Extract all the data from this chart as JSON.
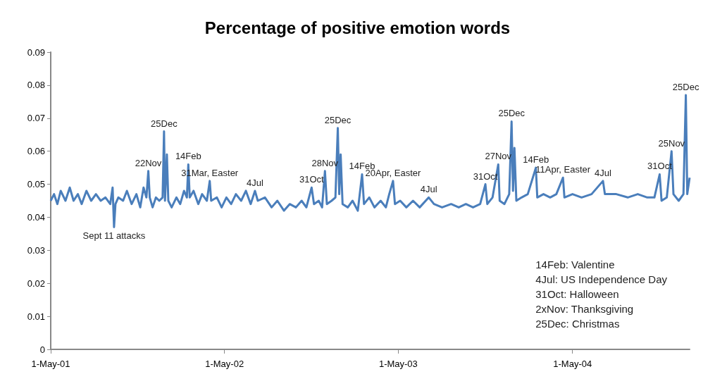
{
  "chart_data": {
    "type": "line",
    "title": "Percentage of positive emotion words",
    "x": [
      "2001-05-01",
      "2001-05-08",
      "2001-05-15",
      "2001-05-22",
      "2001-06-01",
      "2001-06-10",
      "2001-06-18",
      "2001-06-27",
      "2001-07-05",
      "2001-07-15",
      "2001-07-25",
      "2001-08-04",
      "2001-08-14",
      "2001-08-24",
      "2001-09-03",
      "2001-09-08",
      "2001-09-11",
      "2001-09-14",
      "2001-09-20",
      "2001-09-30",
      "2001-10-08",
      "2001-10-18",
      "2001-10-28",
      "2001-11-05",
      "2001-11-12",
      "2001-11-18",
      "2001-11-22",
      "2001-11-25",
      "2001-12-01",
      "2001-12-08",
      "2001-12-15",
      "2001-12-22",
      "2001-12-25",
      "2001-12-27",
      "2001-12-31",
      "2002-01-03",
      "2002-01-10",
      "2002-01-20",
      "2002-01-28",
      "2002-02-05",
      "2002-02-11",
      "2002-02-14",
      "2002-02-17",
      "2002-02-25",
      "2002-03-07",
      "2002-03-15",
      "2002-03-25",
      "2002-03-31",
      "2002-04-03",
      "2002-04-15",
      "2002-04-25",
      "2002-05-05",
      "2002-05-15",
      "2002-05-25",
      "2002-06-05",
      "2002-06-15",
      "2002-06-25",
      "2002-07-04",
      "2002-07-10",
      "2002-07-25",
      "2002-08-08",
      "2002-08-20",
      "2002-09-03",
      "2002-09-15",
      "2002-09-28",
      "2002-10-10",
      "2002-10-20",
      "2002-10-31",
      "2002-11-05",
      "2002-11-15",
      "2002-11-22",
      "2002-11-28",
      "2002-12-02",
      "2002-12-12",
      "2002-12-20",
      "2002-12-25",
      "2002-12-28",
      "2002-12-31",
      "2003-01-04",
      "2003-01-15",
      "2003-01-25",
      "2003-02-05",
      "2003-02-14",
      "2003-02-18",
      "2003-03-01",
      "2003-03-12",
      "2003-03-25",
      "2003-04-05",
      "2003-04-12",
      "2003-04-20",
      "2003-04-24",
      "2003-05-05",
      "2003-05-18",
      "2003-06-01",
      "2003-06-15",
      "2003-07-04",
      "2003-07-15",
      "2003-08-01",
      "2003-08-20",
      "2003-09-05",
      "2003-09-20",
      "2003-10-05",
      "2003-10-20",
      "2003-10-31",
      "2003-11-04",
      "2003-11-15",
      "2003-11-27",
      "2003-11-30",
      "2003-12-10",
      "2003-12-20",
      "2003-12-25",
      "2003-12-28",
      "2003-12-31",
      "2004-01-04",
      "2004-01-15",
      "2004-01-28",
      "2004-02-14",
      "2004-02-17",
      "2004-03-01",
      "2004-03-15",
      "2004-03-28",
      "2004-04-11",
      "2004-04-14",
      "2004-05-01",
      "2004-05-20",
      "2004-06-10",
      "2004-07-04",
      "2004-07-08",
      "2004-08-01",
      "2004-08-25",
      "2004-09-15",
      "2004-10-05",
      "2004-10-20",
      "2004-10-31",
      "2004-11-04",
      "2004-11-15",
      "2004-11-25",
      "2004-11-29",
      "2004-12-10",
      "2004-12-20",
      "2004-12-25",
      "2004-12-28",
      "2005-01-02"
    ],
    "series": [
      {
        "color": "#4a7ebb",
        "values": [
          0.045,
          0.047,
          0.044,
          0.048,
          0.045,
          0.049,
          0.045,
          0.047,
          0.044,
          0.048,
          0.045,
          0.047,
          0.045,
          0.046,
          0.044,
          0.049,
          0.037,
          0.044,
          0.046,
          0.045,
          0.048,
          0.044,
          0.047,
          0.043,
          0.049,
          0.046,
          0.054,
          0.046,
          0.043,
          0.046,
          0.045,
          0.046,
          0.066,
          0.045,
          0.059,
          0.045,
          0.043,
          0.046,
          0.044,
          0.048,
          0.046,
          0.056,
          0.046,
          0.048,
          0.044,
          0.047,
          0.045,
          0.051,
          0.045,
          0.046,
          0.043,
          0.046,
          0.044,
          0.047,
          0.045,
          0.048,
          0.044,
          0.048,
          0.045,
          0.046,
          0.043,
          0.045,
          0.042,
          0.044,
          0.043,
          0.045,
          0.043,
          0.049,
          0.044,
          0.045,
          0.043,
          0.054,
          0.044,
          0.045,
          0.046,
          0.067,
          0.047,
          0.059,
          0.044,
          0.043,
          0.045,
          0.042,
          0.053,
          0.044,
          0.046,
          0.043,
          0.045,
          0.043,
          0.047,
          0.051,
          0.044,
          0.045,
          0.043,
          0.045,
          0.043,
          0.046,
          0.044,
          0.043,
          0.044,
          0.043,
          0.044,
          0.043,
          0.044,
          0.05,
          0.044,
          0.046,
          0.056,
          0.045,
          0.044,
          0.047,
          0.069,
          0.048,
          0.061,
          0.045,
          0.046,
          0.047,
          0.055,
          0.046,
          0.047,
          0.046,
          0.047,
          0.052,
          0.046,
          0.047,
          0.046,
          0.047,
          0.051,
          0.047,
          0.047,
          0.046,
          0.047,
          0.046,
          0.046,
          0.053,
          0.045,
          0.046,
          0.06,
          0.047,
          0.045,
          0.047,
          0.077,
          0.047,
          0.052
        ]
      }
    ],
    "xlim": [
      "2001-05-01",
      "2005-01-02"
    ],
    "xticks": [
      {
        "value": "2001-05-01",
        "label": "1-May-01"
      },
      {
        "value": "2002-05-01",
        "label": "1-May-02"
      },
      {
        "value": "2003-05-01",
        "label": "1-May-03"
      },
      {
        "value": "2004-05-01",
        "label": "1-May-04"
      }
    ],
    "ylim": [
      0,
      0.09
    ],
    "yticks": [
      0,
      0.01,
      0.02,
      0.03,
      0.04,
      0.05,
      0.06,
      0.07,
      0.08,
      0.09
    ],
    "annotations": [
      {
        "text": "Sept 11 attacks",
        "x": "2001-09-11",
        "y": 0.037
      },
      {
        "text": "22Nov",
        "x": "2001-11-22",
        "y": 0.054
      },
      {
        "text": "25Dec",
        "x": "2001-12-25",
        "y": 0.066
      },
      {
        "text": "14Feb",
        "x": "2002-02-14",
        "y": 0.056
      },
      {
        "text": "31Mar, Easter",
        "x": "2002-03-31",
        "y": 0.051
      },
      {
        "text": "4Jul",
        "x": "2002-07-04",
        "y": 0.048
      },
      {
        "text": "31Oct",
        "x": "2002-10-31",
        "y": 0.049
      },
      {
        "text": "28Nov",
        "x": "2002-11-28",
        "y": 0.054
      },
      {
        "text": "25Dec",
        "x": "2002-12-25",
        "y": 0.067
      },
      {
        "text": "14Feb",
        "x": "2003-02-14",
        "y": 0.053
      },
      {
        "text": "20Apr, Easter",
        "x": "2003-04-20",
        "y": 0.051
      },
      {
        "text": "4Jul",
        "x": "2003-07-04",
        "y": 0.046
      },
      {
        "text": "31Oct",
        "x": "2003-10-31",
        "y": 0.05
      },
      {
        "text": "27Nov",
        "x": "2003-11-27",
        "y": 0.056
      },
      {
        "text": "25Dec",
        "x": "2003-12-25",
        "y": 0.069
      },
      {
        "text": "14Feb",
        "x": "2004-02-14",
        "y": 0.055
      },
      {
        "text": "11Apr, Easter",
        "x": "2004-04-11",
        "y": 0.052
      },
      {
        "text": "4Jul",
        "x": "2004-07-04",
        "y": 0.051
      },
      {
        "text": "31Oct",
        "x": "2004-10-31",
        "y": 0.053
      },
      {
        "text": "25Nov",
        "x": "2004-11-25",
        "y": 0.06
      },
      {
        "text": "25Dec",
        "x": "2004-12-25",
        "y": 0.077
      },
      "14Feb: Valentine",
      "4Jul: US Independence Day",
      "31Oct: Halloween",
      "2xNov: Thanksgiving",
      "25Dec: Christmas"
    ]
  }
}
